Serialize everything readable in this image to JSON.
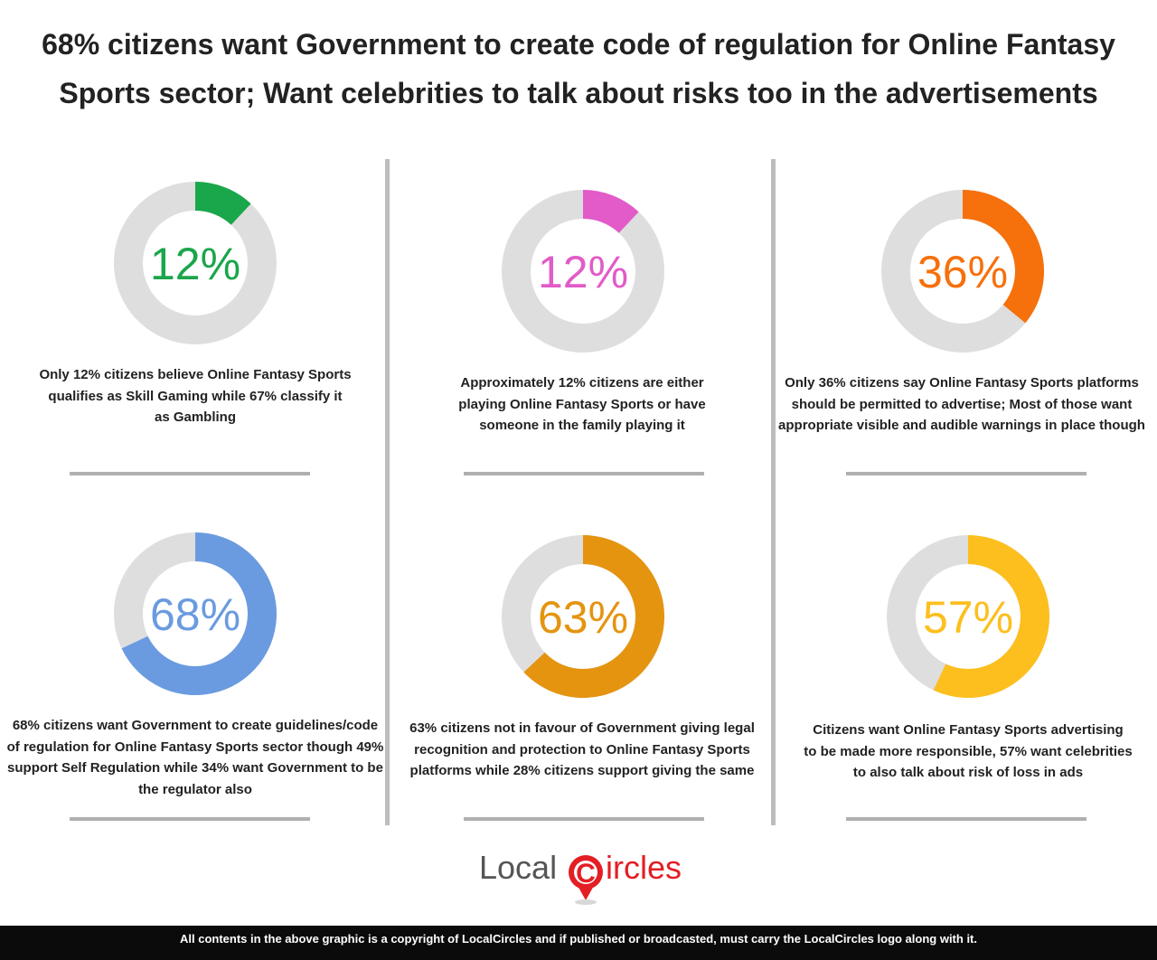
{
  "title": {
    "line1": "68% citizens want Government to create code of regulation for Online Fantasy",
    "line2": "Sports sector; Want celebrities to talk about risks too in the advertisements"
  },
  "chart_data": [
    {
      "type": "pie",
      "value": 12,
      "label": "12%",
      "color": "#1aa64b",
      "description": [
        "Only 12% citizens believe Online Fantasy Sports",
        "qualifies as Skill Gaming while 67% classify it",
        "as Gambling"
      ]
    },
    {
      "type": "pie",
      "value": 12,
      "label": "12%",
      "color": "#e25bc8",
      "description": [
        "Approximately 12% citizens are either",
        "playing Online Fantasy Sports or have",
        "someone in the family playing it"
      ]
    },
    {
      "type": "pie",
      "value": 36,
      "label": "36%",
      "color": "#f6700c",
      "description": [
        "Only 36% citizens say Online Fantasy Sports platforms",
        "should be permitted to advertise; Most of those want",
        "appropriate visible and audible warnings in place though"
      ]
    },
    {
      "type": "pie",
      "value": 68,
      "label": "68%",
      "color": "#6a9be0",
      "description": [
        "68% citizens want Government to create guidelines/code",
        "of regulation for Online Fantasy Sports sector though 49%",
        "support Self Regulation while 34% want Government to be",
        "the regulator also"
      ]
    },
    {
      "type": "pie",
      "value": 63,
      "label": "63%",
      "color": "#e59410",
      "description": [
        "63% citizens not in favour of Government giving legal",
        "recognition and protection to Online Fantasy Sports",
        "platforms while 28% citizens support giving the same"
      ]
    },
    {
      "type": "pie",
      "value": 57,
      "label": "57%",
      "color": "#fcbf1e",
      "description": [
        "Citizens want Online Fantasy Sports advertising",
        "to be made more responsible, 57% want celebrities",
        "to also talk about risk of loss in ads"
      ]
    }
  ],
  "track_color": "#dedede",
  "logo": {
    "part1": "Local",
    "letter": "C",
    "part2": "ircles"
  },
  "footer": "All contents in the above graphic is a copyright of LocalCircles and if published or broadcasted, must carry the LocalCircles logo along with it."
}
